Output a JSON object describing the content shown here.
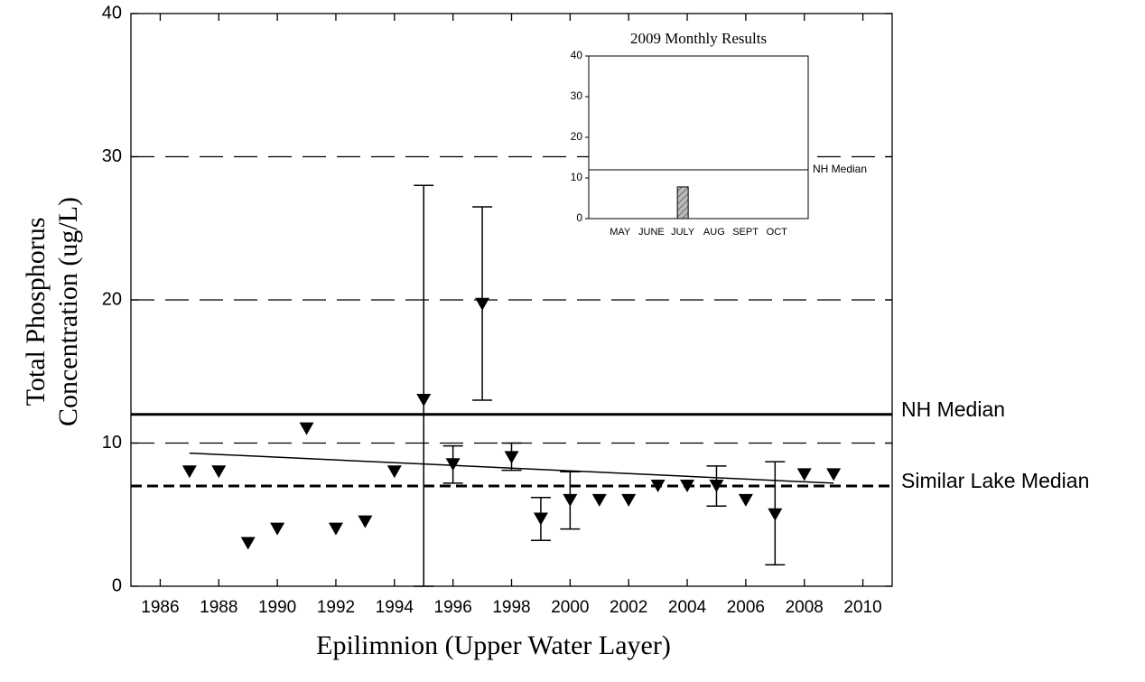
{
  "chart_data": [
    {
      "type": "scatter",
      "ylabel": [
        "Total Phosphorus",
        "Concentration (ug/L)"
      ],
      "xlabel": "Epilimnion (Upper Water Layer)",
      "x": [
        1987,
        1988,
        1989,
        1990,
        1991,
        1992,
        1993,
        1994,
        1995,
        1996,
        1997,
        1998,
        1999,
        2000,
        2001,
        2002,
        2003,
        2004,
        2005,
        2006,
        2007,
        2008,
        2009
      ],
      "values": [
        8,
        8,
        3,
        4,
        11,
        4,
        4.5,
        8,
        13,
        8.5,
        19.7,
        9,
        4.7,
        6,
        6,
        6,
        7,
        7,
        7,
        6,
        5,
        7.8,
        7.8
      ],
      "error_low": [
        null,
        null,
        null,
        null,
        null,
        null,
        null,
        null,
        0,
        7.2,
        13,
        8.1,
        3.2,
        4,
        null,
        null,
        null,
        null,
        5.6,
        null,
        1.5,
        null,
        null
      ],
      "error_high": [
        null,
        null,
        null,
        null,
        null,
        null,
        null,
        null,
        28,
        9.8,
        26.5,
        10,
        6.2,
        8,
        null,
        null,
        null,
        null,
        8.4,
        null,
        8.7,
        null,
        null
      ],
      "color": "#000000",
      "trend": {
        "x": [
          1987,
          2009
        ],
        "values": [
          9.3,
          7.2
        ]
      },
      "reference_lines": [
        {
          "value": 10,
          "style": "long-dash"
        },
        {
          "value": 20,
          "style": "long-dash"
        },
        {
          "value": 30,
          "style": "long-dash"
        },
        {
          "value": 12,
          "style": "solid",
          "label": "NH Median"
        },
        {
          "value": 7,
          "style": "dashed",
          "label": "Similar Lake Median"
        }
      ],
      "xlim": [
        1985,
        2011
      ],
      "xticks": [
        1986,
        1988,
        1990,
        1992,
        1994,
        1996,
        1998,
        2000,
        2002,
        2004,
        2006,
        2008,
        2010
      ],
      "ylim": [
        0,
        40
      ],
      "yticks": [
        0,
        10,
        20,
        30,
        40
      ]
    },
    {
      "type": "bar",
      "title": "2009 Monthly Results",
      "categories": [
        "MAY",
        "JUNE",
        "JULY",
        "AUG",
        "SEPT",
        "OCT"
      ],
      "values": [
        null,
        null,
        7.8,
        null,
        null,
        null
      ],
      "color": "#bbbbbb",
      "hatch": true,
      "reference_lines": [
        {
          "value": 12,
          "style": "solid",
          "label": "NH Median"
        }
      ],
      "ylim": [
        0,
        40
      ],
      "yticks": [
        0,
        10,
        20,
        30,
        40
      ]
    }
  ]
}
